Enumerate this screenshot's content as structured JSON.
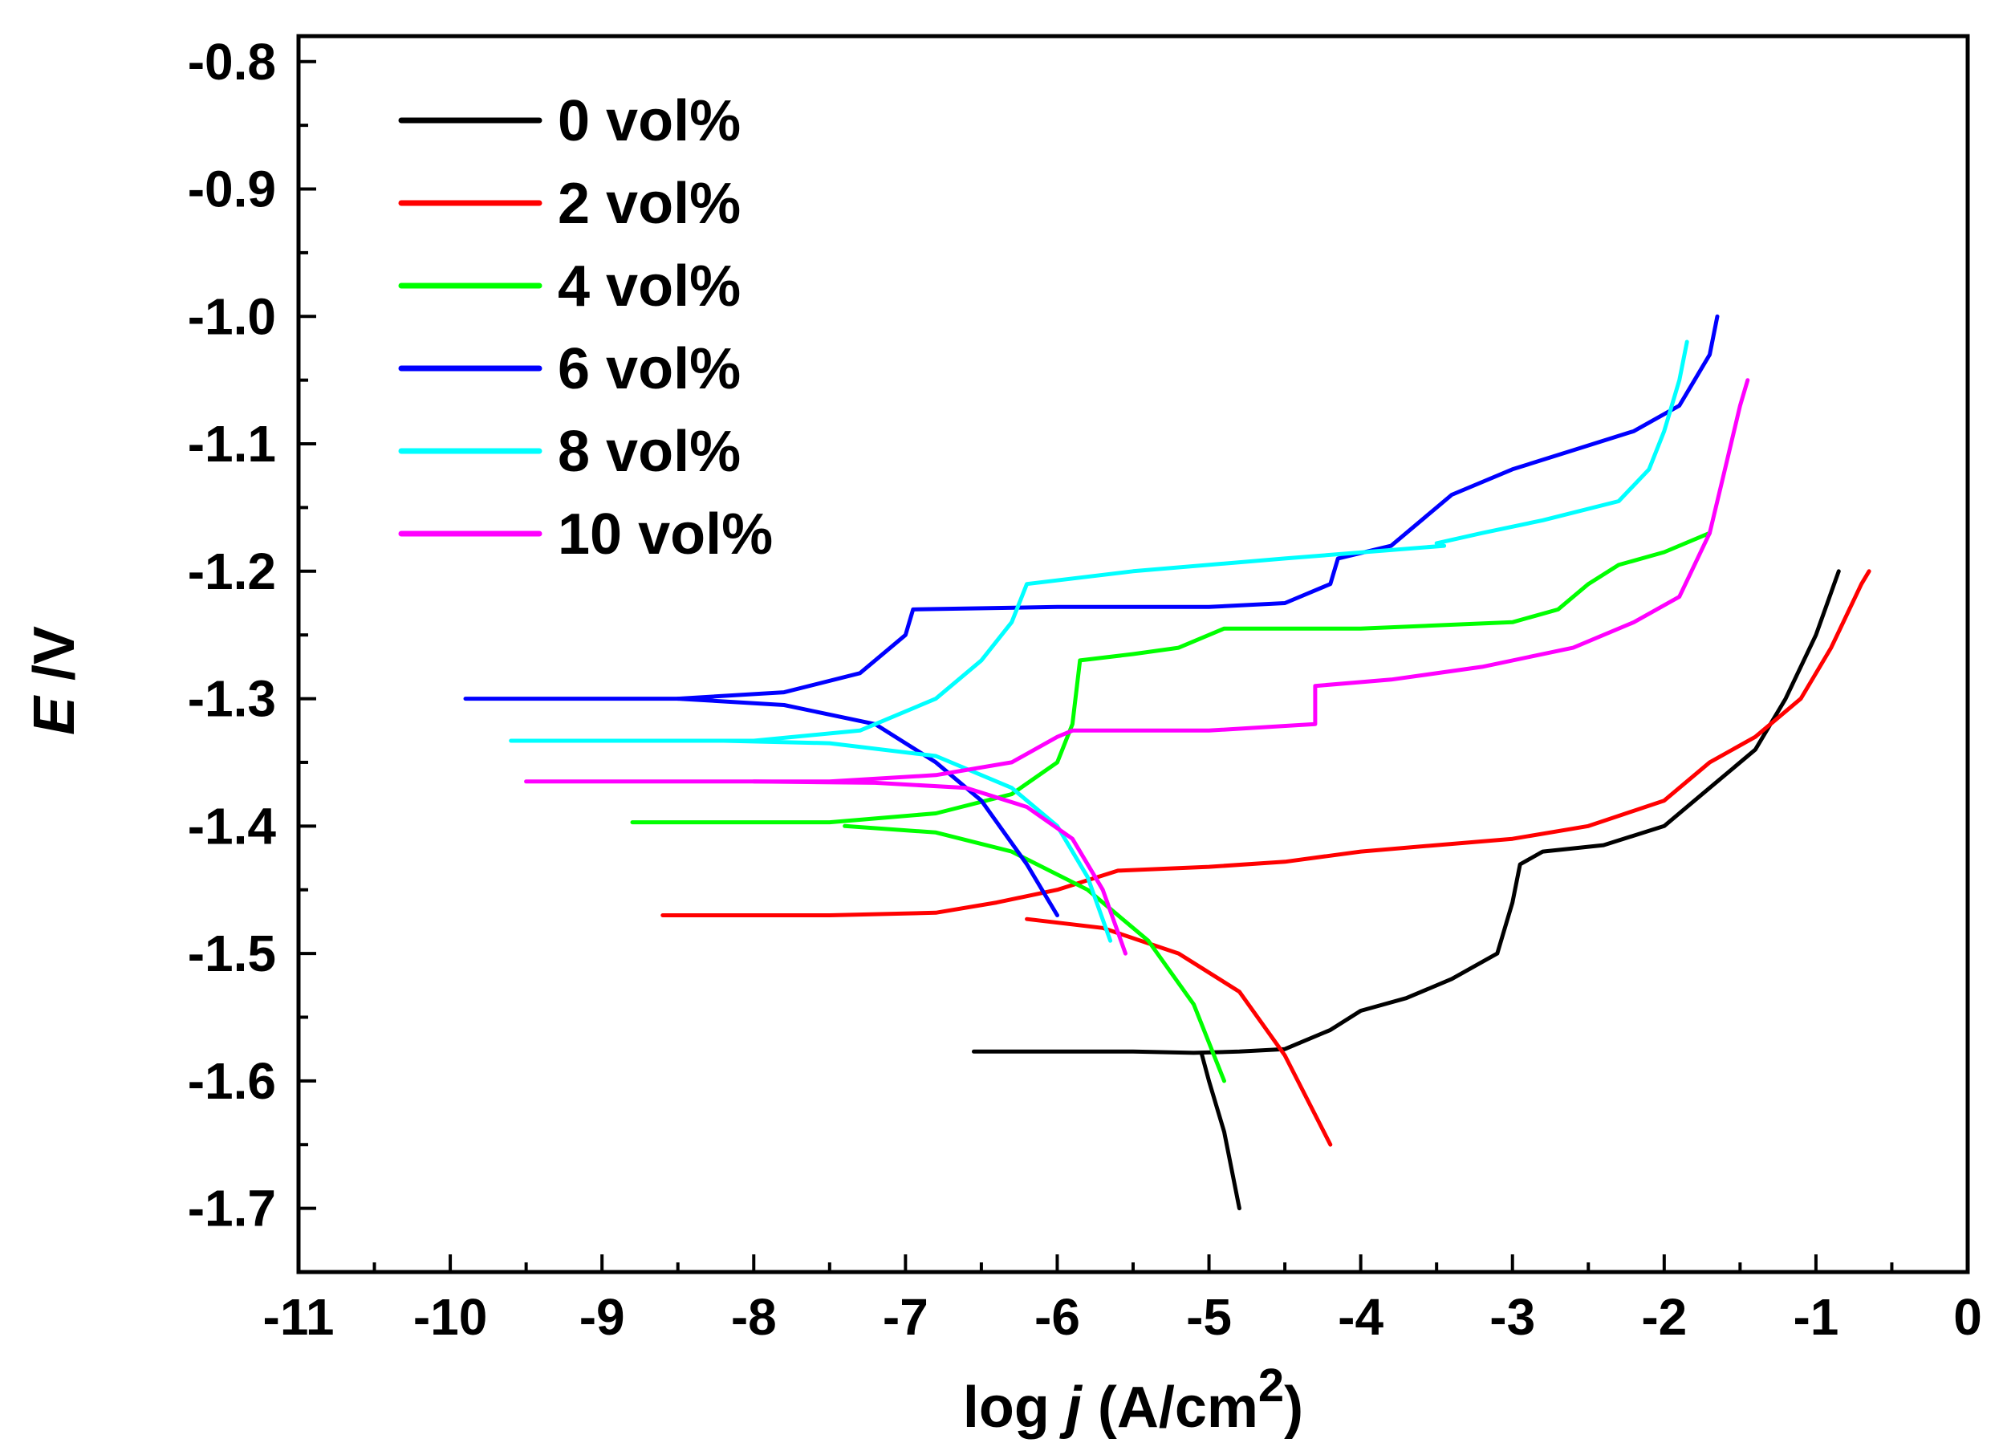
{
  "chart_data": {
    "type": "line",
    "title": "",
    "xlabel": {
      "prefix": "log ",
      "italic": "j",
      "space": " ",
      "unit_open": "(A/cm",
      "sup": "2",
      "unit_close": ")"
    },
    "ylabel": {
      "italic": "E",
      "rest": " /V"
    },
    "xlim": [
      -11,
      0
    ],
    "ylim": [
      -1.75,
      -0.78
    ],
    "x_ticks": [
      -11,
      -10,
      -9,
      -8,
      -7,
      -6,
      -5,
      -4,
      -3,
      -2,
      -1,
      0
    ],
    "y_ticks": [
      -0.8,
      -0.9,
      -1.0,
      -1.1,
      -1.2,
      -1.3,
      -1.4,
      -1.5,
      -1.6,
      -1.7
    ],
    "x_tick_labels": [
      "-11",
      "-10",
      "-9",
      "-8",
      "-7",
      "-6",
      "-5",
      "-4",
      "-3",
      "-2",
      "-1",
      "0"
    ],
    "y_tick_labels": [
      "-0.8",
      "-0.9",
      "-1.0",
      "-1.1",
      "-1.2",
      "-1.3",
      "-1.4",
      "-1.5",
      "-1.6",
      "-1.7"
    ],
    "legend_position": "top-left",
    "grid": false,
    "series": [
      {
        "name": "0 vol%",
        "color": "#000000",
        "cathodic": [
          [
            -4.8,
            -1.7
          ],
          [
            -4.9,
            -1.64
          ],
          [
            -5.0,
            -1.6
          ],
          [
            -5.05,
            -1.578
          ]
        ],
        "anodic": [
          [
            -6.55,
            -1.577
          ],
          [
            -5.5,
            -1.577
          ],
          [
            -5.1,
            -1.578
          ],
          [
            -4.8,
            -1.577
          ],
          [
            -4.5,
            -1.575
          ],
          [
            -4.2,
            -1.56
          ],
          [
            -4.0,
            -1.545
          ],
          [
            -3.7,
            -1.535
          ],
          [
            -3.4,
            -1.52
          ],
          [
            -3.1,
            -1.5
          ],
          [
            -3.0,
            -1.46
          ],
          [
            -2.95,
            -1.43
          ],
          [
            -2.8,
            -1.42
          ],
          [
            -2.4,
            -1.415
          ],
          [
            -2.0,
            -1.4
          ],
          [
            -1.7,
            -1.37
          ],
          [
            -1.4,
            -1.34
          ],
          [
            -1.2,
            -1.3
          ],
          [
            -1.0,
            -1.25
          ],
          [
            -0.85,
            -1.2
          ]
        ]
      },
      {
        "name": "2 vol%",
        "color": "#ff0000",
        "cathodic": [
          [
            -4.2,
            -1.65
          ],
          [
            -4.5,
            -1.58
          ],
          [
            -4.8,
            -1.53
          ],
          [
            -5.2,
            -1.5
          ],
          [
            -5.7,
            -1.48
          ],
          [
            -6.2,
            -1.473
          ]
        ],
        "anodic": [
          [
            -8.6,
            -1.47
          ],
          [
            -7.5,
            -1.47
          ],
          [
            -6.8,
            -1.468
          ],
          [
            -6.4,
            -1.46
          ],
          [
            -6.0,
            -1.45
          ],
          [
            -5.6,
            -1.435
          ],
          [
            -5.0,
            -1.432
          ],
          [
            -4.5,
            -1.428
          ],
          [
            -4.0,
            -1.42
          ],
          [
            -3.5,
            -1.415
          ],
          [
            -3.0,
            -1.41
          ],
          [
            -2.5,
            -1.4
          ],
          [
            -2.0,
            -1.38
          ],
          [
            -1.7,
            -1.35
          ],
          [
            -1.4,
            -1.33
          ],
          [
            -1.1,
            -1.3
          ],
          [
            -0.9,
            -1.26
          ],
          [
            -0.7,
            -1.21
          ],
          [
            -0.65,
            -1.2
          ]
        ]
      },
      {
        "name": "4 vol%",
        "color": "#00ff00",
        "cathodic": [
          [
            -4.9,
            -1.6
          ],
          [
            -5.1,
            -1.54
          ],
          [
            -5.4,
            -1.49
          ],
          [
            -5.8,
            -1.45
          ],
          [
            -6.3,
            -1.42
          ],
          [
            -6.8,
            -1.405
          ],
          [
            -7.4,
            -1.4
          ]
        ],
        "anodic": [
          [
            -8.8,
            -1.397
          ],
          [
            -7.5,
            -1.397
          ],
          [
            -6.8,
            -1.39
          ],
          [
            -6.3,
            -1.375
          ],
          [
            -6.0,
            -1.35
          ],
          [
            -5.9,
            -1.32
          ],
          [
            -5.85,
            -1.27
          ],
          [
            -5.5,
            -1.265
          ],
          [
            -5.2,
            -1.26
          ],
          [
            -4.9,
            -1.245
          ],
          [
            -4.0,
            -1.245
          ],
          [
            -3.0,
            -1.24
          ],
          [
            -2.7,
            -1.23
          ],
          [
            -2.5,
            -1.21
          ],
          [
            -2.3,
            -1.195
          ],
          [
            -2.0,
            -1.185
          ],
          [
            -1.7,
            -1.17
          ]
        ]
      },
      {
        "name": "6 vol%",
        "color": "#0000ff",
        "cathodic": [
          [
            -6.0,
            -1.47
          ],
          [
            -6.2,
            -1.43
          ],
          [
            -6.5,
            -1.38
          ],
          [
            -6.8,
            -1.35
          ],
          [
            -7.2,
            -1.32
          ],
          [
            -7.8,
            -1.305
          ],
          [
            -8.5,
            -1.3
          ]
        ],
        "anodic": [
          [
            -9.9,
            -1.3
          ],
          [
            -8.5,
            -1.3
          ],
          [
            -7.8,
            -1.295
          ],
          [
            -7.3,
            -1.28
          ],
          [
            -7.0,
            -1.25
          ],
          [
            -6.95,
            -1.23
          ],
          [
            -6.0,
            -1.228
          ],
          [
            -5.0,
            -1.228
          ],
          [
            -4.5,
            -1.225
          ],
          [
            -4.2,
            -1.21
          ],
          [
            -4.15,
            -1.19
          ],
          [
            -3.8,
            -1.18
          ],
          [
            -3.6,
            -1.16
          ],
          [
            -3.4,
            -1.14
          ],
          [
            -3.0,
            -1.12
          ],
          [
            -2.6,
            -1.105
          ],
          [
            -2.2,
            -1.09
          ],
          [
            -1.9,
            -1.07
          ],
          [
            -1.8,
            -1.05
          ],
          [
            -1.7,
            -1.03
          ],
          [
            -1.65,
            -1.0
          ]
        ]
      },
      {
        "name": "8 vol%",
        "color": "#00ffff",
        "cathodic": [
          [
            -5.65,
            -1.49
          ],
          [
            -5.8,
            -1.44
          ],
          [
            -6.0,
            -1.4
          ],
          [
            -6.3,
            -1.37
          ],
          [
            -6.8,
            -1.345
          ],
          [
            -7.5,
            -1.335
          ],
          [
            -8.2,
            -1.333
          ]
        ],
        "anodic": [
          [
            -9.6,
            -1.333
          ],
          [
            -8.0,
            -1.333
          ],
          [
            -7.3,
            -1.325
          ],
          [
            -6.8,
            -1.3
          ],
          [
            -6.5,
            -1.27
          ],
          [
            -6.3,
            -1.24
          ],
          [
            -6.2,
            -1.21
          ],
          [
            -5.5,
            -1.2
          ],
          [
            -4.5,
            -1.19
          ],
          [
            -3.45,
            -1.18
          ],
          [
            -3.5,
            -1.178
          ],
          [
            -3.2,
            -1.17
          ],
          [
            -2.8,
            -1.16
          ],
          [
            -2.3,
            -1.145
          ],
          [
            -2.1,
            -1.12
          ],
          [
            -2.0,
            -1.09
          ],
          [
            -1.9,
            -1.05
          ],
          [
            -1.85,
            -1.02
          ]
        ]
      },
      {
        "name": "10 vol%",
        "color": "#ff00ff",
        "cathodic": [
          [
            -5.55,
            -1.5
          ],
          [
            -5.7,
            -1.45
          ],
          [
            -5.9,
            -1.41
          ],
          [
            -6.2,
            -1.385
          ],
          [
            -6.6,
            -1.37
          ],
          [
            -7.2,
            -1.366
          ],
          [
            -8.0,
            -1.365
          ]
        ],
        "anodic": [
          [
            -9.5,
            -1.365
          ],
          [
            -7.5,
            -1.365
          ],
          [
            -6.8,
            -1.36
          ],
          [
            -6.3,
            -1.35
          ],
          [
            -6.0,
            -1.33
          ],
          [
            -5.9,
            -1.325
          ],
          [
            -5.0,
            -1.325
          ],
          [
            -4.3,
            -1.32
          ],
          [
            -4.3,
            -1.29
          ],
          [
            -3.8,
            -1.285
          ],
          [
            -3.2,
            -1.275
          ],
          [
            -2.6,
            -1.26
          ],
          [
            -2.2,
            -1.24
          ],
          [
            -1.9,
            -1.22
          ],
          [
            -1.7,
            -1.17
          ],
          [
            -1.6,
            -1.12
          ],
          [
            -1.5,
            -1.07
          ],
          [
            -1.45,
            -1.05
          ]
        ]
      }
    ]
  }
}
